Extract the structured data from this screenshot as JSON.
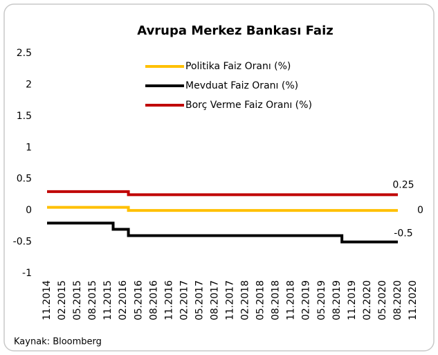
{
  "chart_data": {
    "type": "line",
    "line_style": "step",
    "title": "Avrupa Merkez Bankası Faiz",
    "source": "Kaynak: Bloomberg",
    "categories": [
      "11.2014",
      null,
      null,
      "02.2015",
      null,
      null,
      "05.2015",
      null,
      null,
      "08.2015",
      null,
      null,
      "11.2015",
      null,
      null,
      "02.2016",
      null,
      null,
      "05.2016",
      null,
      null,
      "08.2016",
      null,
      null,
      "11.2016",
      null,
      null,
      "02.2017",
      null,
      null,
      "05.2017",
      null,
      null,
      "08.2017",
      null,
      null,
      "11.2017",
      null,
      null,
      "02.2018",
      null,
      null,
      "05.2018",
      null,
      null,
      "08.2018",
      null,
      null,
      "11.2018",
      null,
      null,
      "02.2019",
      null,
      null,
      "05.2019",
      null,
      null,
      "08.2019",
      null,
      null,
      "11.2019",
      null,
      null,
      "02.2020",
      null,
      null,
      "05.2020",
      null,
      null,
      "08.2020",
      null,
      null,
      "11.2020"
    ],
    "series": [
      {
        "name": "Politika Faiz Oranı (%)",
        "color": "#FFC000",
        "values": [
          0.05,
          0.05,
          0.05,
          0.05,
          0.05,
          0.05,
          0.05,
          0.05,
          0.05,
          0.05,
          0.05,
          0.05,
          0.05,
          0.05,
          0.05,
          0.05,
          0,
          0,
          0,
          0,
          0,
          0,
          0,
          0,
          0,
          0,
          0,
          0,
          0,
          0,
          0,
          0,
          0,
          0,
          0,
          0,
          0,
          0,
          0,
          0,
          0,
          0,
          0,
          0,
          0,
          0,
          0,
          0,
          0,
          0,
          0,
          0,
          0,
          0,
          0,
          0,
          0,
          0,
          0,
          0,
          0,
          0,
          0,
          0,
          0,
          0,
          0,
          0,
          0,
          0,
          null,
          null,
          null
        ]
      },
      {
        "name": "Mevduat Faiz Oranı (%)",
        "color": "#000000",
        "values": [
          -0.2,
          -0.2,
          -0.2,
          -0.2,
          -0.2,
          -0.2,
          -0.2,
          -0.2,
          -0.2,
          -0.2,
          -0.2,
          -0.2,
          -0.2,
          -0.3,
          -0.3,
          -0.3,
          -0.4,
          -0.4,
          -0.4,
          -0.4,
          -0.4,
          -0.4,
          -0.4,
          -0.4,
          -0.4,
          -0.4,
          -0.4,
          -0.4,
          -0.4,
          -0.4,
          -0.4,
          -0.4,
          -0.4,
          -0.4,
          -0.4,
          -0.4,
          -0.4,
          -0.4,
          -0.4,
          -0.4,
          -0.4,
          -0.4,
          -0.4,
          -0.4,
          -0.4,
          -0.4,
          -0.4,
          -0.4,
          -0.4,
          -0.4,
          -0.4,
          -0.4,
          -0.4,
          -0.4,
          -0.4,
          -0.4,
          -0.4,
          -0.4,
          -0.5,
          -0.5,
          -0.5,
          -0.5,
          -0.5,
          -0.5,
          -0.5,
          -0.5,
          -0.5,
          -0.5,
          -0.5,
          -0.5,
          null,
          null,
          null
        ]
      },
      {
        "name": "Borç Verme Faiz Oranı (%)",
        "color": "#C00000",
        "values": [
          0.3,
          0.3,
          0.3,
          0.3,
          0.3,
          0.3,
          0.3,
          0.3,
          0.3,
          0.3,
          0.3,
          0.3,
          0.3,
          0.3,
          0.3,
          0.3,
          0.25,
          0.25,
          0.25,
          0.25,
          0.25,
          0.25,
          0.25,
          0.25,
          0.25,
          0.25,
          0.25,
          0.25,
          0.25,
          0.25,
          0.25,
          0.25,
          0.25,
          0.25,
          0.25,
          0.25,
          0.25,
          0.25,
          0.25,
          0.25,
          0.25,
          0.25,
          0.25,
          0.25,
          0.25,
          0.25,
          0.25,
          0.25,
          0.25,
          0.25,
          0.25,
          0.25,
          0.25,
          0.25,
          0.25,
          0.25,
          0.25,
          0.25,
          0.25,
          0.25,
          0.25,
          0.25,
          0.25,
          0.25,
          0.25,
          0.25,
          0.25,
          0.25,
          0.25,
          0.25,
          null,
          null,
          null
        ]
      }
    ],
    "data_labels": "last",
    "legend": "top",
    "ylim": [
      -1,
      2.5
    ],
    "yticks": [
      -1,
      -0.5,
      0,
      0.5,
      1,
      1.5,
      2,
      2.5
    ],
    "grid": false
  }
}
